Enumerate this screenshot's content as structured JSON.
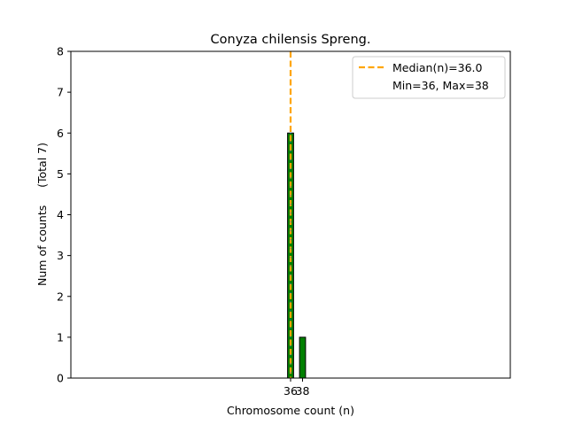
{
  "chart_data": {
    "type": "bar",
    "title": "Conyza chilensis Spreng.",
    "xlabel": "Chromosome count (n)",
    "ylabel": "Num of counts     (Total 7)",
    "bars": [
      {
        "x": 36,
        "value": 6
      },
      {
        "x": 38,
        "value": 1
      }
    ],
    "xticks": [
      36,
      38
    ],
    "xtick_labels": [
      "36",
      "38"
    ],
    "yticks": [
      0,
      1,
      2,
      3,
      4,
      5,
      6,
      7,
      8
    ],
    "ylim": [
      0,
      8
    ],
    "median": 36.0,
    "legend": {
      "placement": "top-right",
      "entries": [
        "Median(n)=36.0",
        "Min=36, Max=38"
      ]
    },
    "grid": false,
    "colors": {
      "bar": "#008000",
      "bar_edge": "#000000",
      "median_line": "#ffa500",
      "median_dots": "#1f77b4"
    }
  }
}
